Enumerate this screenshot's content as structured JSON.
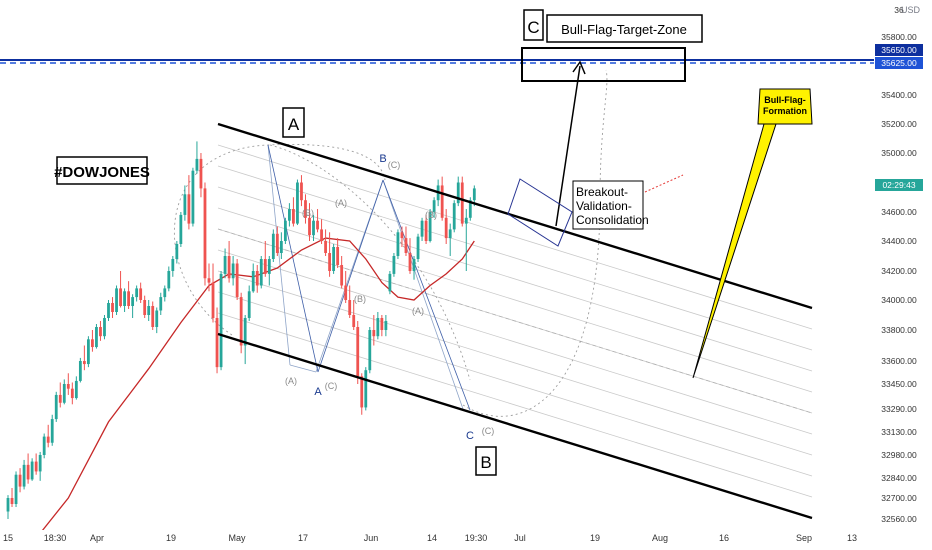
{
  "chart_data": {
    "type": "candlestick",
    "symbol": "#DOWJONES",
    "currency": "USD",
    "x_tick_labels": [
      "15",
      "18:30",
      "Apr",
      "19",
      "May",
      "17",
      "Jun",
      "14",
      "19:30",
      "Jul",
      "19",
      "Aug",
      "16",
      "Sep",
      "13"
    ],
    "y_tick_labels": [
      "35800.00",
      "35400.00",
      "35200.00",
      "35000.00",
      "34600.00",
      "34400.00",
      "34200.00",
      "34000.00",
      "33800.00",
      "33600.00",
      "33450.00",
      "33290.00",
      "33130.00",
      "32980.00",
      "32840.00",
      "32700.00",
      "32560.00"
    ],
    "price_badges": [
      {
        "label": "35650.00",
        "color": "#0d2f9e"
      },
      {
        "label": "35625.00",
        "color": "#1e53d6"
      },
      {
        "label": "02:29:43",
        "color": "#26a69a"
      }
    ],
    "horizontal_lines": [
      {
        "value": 35650,
        "style": "solid",
        "color": "#0d2f9e"
      },
      {
        "value": 35625,
        "style": "dashed",
        "color": "#1e53d6"
      }
    ],
    "candles": [
      [
        15,
        32610,
        32720,
        32560,
        32700
      ],
      [
        16,
        32700,
        32770,
        32640,
        32660
      ],
      [
        17,
        32660,
        32880,
        32640,
        32860
      ],
      [
        18,
        32860,
        32900,
        32740,
        32780
      ],
      [
        19,
        32780,
        32950,
        32760,
        32920
      ],
      [
        20,
        32920,
        32990,
        32800,
        32830
      ],
      [
        21,
        32830,
        32960,
        32820,
        32940
      ],
      [
        22,
        32940,
        32990,
        32860,
        32880
      ],
      [
        23,
        32880,
        33000,
        32820,
        32980
      ],
      [
        24,
        32980,
        33120,
        32960,
        33100
      ],
      [
        25,
        33100,
        33180,
        33030,
        33060
      ],
      [
        26,
        33060,
        33250,
        33040,
        33220
      ],
      [
        27,
        33220,
        33400,
        33200,
        33380
      ],
      [
        28,
        33380,
        33460,
        33300,
        33330
      ],
      [
        29,
        33330,
        33480,
        33320,
        33450
      ],
      [
        30,
        33450,
        33520,
        33380,
        33420
      ],
      [
        31,
        33420,
        33460,
        33320,
        33360
      ],
      [
        32,
        33360,
        33500,
        33350,
        33470
      ],
      [
        33,
        33470,
        33620,
        33460,
        33600
      ],
      [
        34,
        33600,
        33700,
        33540,
        33580
      ],
      [
        35,
        33580,
        33760,
        33560,
        33740
      ],
      [
        36,
        33740,
        33800,
        33660,
        33690
      ],
      [
        37,
        33690,
        33840,
        33680,
        33820
      ],
      [
        38,
        33820,
        33860,
        33730,
        33760
      ],
      [
        39,
        33760,
        33900,
        33740,
        33880
      ],
      [
        40,
        33880,
        34000,
        33860,
        33980
      ],
      [
        41,
        33980,
        34020,
        33880,
        33920
      ],
      [
        42,
        33920,
        34100,
        33900,
        34080
      ],
      [
        43,
        34080,
        34200,
        33950,
        33960
      ],
      [
        44,
        33960,
        34080,
        33920,
        34060
      ],
      [
        45,
        34060,
        34130,
        33940,
        33960
      ],
      [
        46,
        33960,
        34040,
        33880,
        34020
      ],
      [
        47,
        34020,
        34100,
        33990,
        34080
      ],
      [
        48,
        34080,
        34120,
        33980,
        34000
      ],
      [
        49,
        34000,
        34030,
        33880,
        33900
      ],
      [
        50,
        33900,
        34000,
        33860,
        33960
      ],
      [
        51,
        33960,
        33990,
        33800,
        33820
      ],
      [
        52,
        33820,
        33950,
        33780,
        33930
      ],
      [
        53,
        33930,
        34050,
        33900,
        34020
      ],
      [
        54,
        34020,
        34100,
        33990,
        34080
      ],
      [
        55,
        34080,
        34230,
        34060,
        34200
      ],
      [
        56,
        34200,
        34300,
        34160,
        34280
      ],
      [
        57,
        34280,
        34400,
        34250,
        34380
      ],
      [
        58,
        34380,
        34600,
        34360,
        34580
      ],
      [
        59,
        34580,
        34780,
        34540,
        34720
      ],
      [
        60,
        34720,
        34850,
        34480,
        34520
      ],
      [
        61,
        34520,
        34900,
        34500,
        34880
      ],
      [
        62,
        34880,
        35080,
        34860,
        34960
      ],
      [
        63,
        34960,
        35000,
        34700,
        34760
      ],
      [
        64,
        34760,
        34800,
        34100,
        34150
      ],
      [
        65,
        34150,
        34250,
        34060,
        34120
      ],
      [
        66,
        34120,
        34250,
        33850,
        33880
      ],
      [
        67,
        33880,
        33950,
        33520,
        33560
      ],
      [
        68,
        33560,
        34200,
        33540,
        34180
      ],
      [
        69,
        34180,
        34350,
        34150,
        34300
      ],
      [
        70,
        34300,
        34400,
        34120,
        34150
      ],
      [
        71,
        34150,
        34300,
        34100,
        34250
      ],
      [
        72,
        34250,
        34280,
        34000,
        34020
      ],
      [
        73,
        34020,
        34050,
        33650,
        33700
      ],
      [
        74,
        33700,
        33900,
        33580,
        33880
      ],
      [
        75,
        33880,
        34100,
        33860,
        34060
      ],
      [
        76,
        34060,
        34250,
        34050,
        34200
      ],
      [
        77,
        34200,
        34240,
        34050,
        34100
      ],
      [
        78,
        34100,
        34300,
        34080,
        34280
      ],
      [
        79,
        34280,
        34400,
        34160,
        34180
      ],
      [
        80,
        34180,
        34300,
        34100,
        34280
      ],
      [
        81,
        34280,
        34480,
        34260,
        34450
      ],
      [
        82,
        34450,
        34500,
        34300,
        34320
      ],
      [
        83,
        34320,
        34460,
        34280,
        34400
      ],
      [
        84,
        34400,
        34560,
        34380,
        34540
      ],
      [
        85,
        34540,
        34660,
        34500,
        34620
      ],
      [
        86,
        34620,
        34700,
        34500,
        34520
      ],
      [
        87,
        34520,
        34820,
        34510,
        34800
      ],
      [
        88,
        34800,
        34850,
        34640,
        34680
      ],
      [
        89,
        34680,
        34720,
        34520,
        34560
      ],
      [
        90,
        34560,
        34660,
        34400,
        34440
      ],
      [
        91,
        34440,
        34580,
        34400,
        34540
      ],
      [
        92,
        34540,
        34620,
        34460,
        34480
      ],
      [
        93,
        34480,
        34550,
        34380,
        34400
      ],
      [
        94,
        34400,
        34480,
        34300,
        34320
      ],
      [
        95,
        34320,
        34460,
        34160,
        34200
      ],
      [
        96,
        34200,
        34380,
        34180,
        34360
      ],
      [
        97,
        34360,
        34420,
        34220,
        34240
      ],
      [
        98,
        34240,
        34300,
        34080,
        34100
      ],
      [
        99,
        34100,
        34200,
        33980,
        34000
      ],
      [
        100,
        34000,
        34100,
        33880,
        33900
      ],
      [
        101,
        33900,
        34000,
        33800,
        33820
      ],
      [
        102,
        33820,
        33860,
        33450,
        33500
      ],
      [
        103,
        33500,
        33520,
        33250,
        33300
      ],
      [
        104,
        33300,
        33560,
        33280,
        33540
      ],
      [
        105,
        33540,
        33820,
        33520,
        33800
      ],
      [
        106,
        33800,
        33900,
        33700,
        33760
      ],
      [
        107,
        33760,
        33920,
        33740,
        33880
      ],
      [
        108,
        33880,
        33900,
        33760,
        33800
      ],
      [
        109,
        33800,
        33900,
        33760,
        33860
      ],
      [
        110,
        34060,
        34200,
        34040,
        34180
      ],
      [
        111,
        34180,
        34320,
        34160,
        34300
      ],
      [
        112,
        34300,
        34480,
        34280,
        34460
      ],
      [
        113,
        34460,
        34500,
        34360,
        34420
      ],
      [
        114,
        34420,
        34500,
        34300,
        34320
      ],
      [
        115,
        34320,
        34420,
        34180,
        34200
      ],
      [
        116,
        34200,
        34300,
        34140,
        34280
      ],
      [
        117,
        34280,
        34450,
        34260,
        34430
      ],
      [
        118,
        34430,
        34560,
        34400,
        34540
      ],
      [
        119,
        34540,
        34580,
        34380,
        34400
      ],
      [
        120,
        34400,
        34620,
        34390,
        34600
      ],
      [
        121,
        34600,
        34700,
        34560,
        34680
      ],
      [
        122,
        34680,
        34820,
        34640,
        34780
      ],
      [
        123,
        34780,
        34840,
        34540,
        34560
      ],
      [
        124,
        34560,
        34620,
        34380,
        34420
      ],
      [
        125,
        34420,
        34520,
        34300,
        34480
      ],
      [
        126,
        34480,
        34680,
        34460,
        34660
      ],
      [
        127,
        34660,
        34840,
        34640,
        34800
      ],
      [
        128,
        34800,
        34840,
        34500,
        34520
      ],
      [
        129,
        34520,
        34620,
        34200,
        34560
      ],
      [
        130,
        34560,
        34700,
        34540,
        34680
      ],
      [
        131,
        34680,
        34780,
        34640,
        34760
      ]
    ],
    "moving_average": {
      "color": "#c62828",
      "points": [
        [
          15,
          31800
        ],
        [
          22,
          32200
        ],
        [
          30,
          32700
        ],
        [
          40,
          33200
        ],
        [
          50,
          33550
        ],
        [
          58,
          33850
        ],
        [
          65,
          34100
        ],
        [
          70,
          34180
        ],
        [
          76,
          34160
        ],
        [
          82,
          34220
        ],
        [
          88,
          34340
        ],
        [
          94,
          34420
        ],
        [
          100,
          34400
        ],
        [
          104,
          34280
        ],
        [
          108,
          34120
        ],
        [
          112,
          34020
        ],
        [
          116,
          34000
        ],
        [
          120,
          34100
        ],
        [
          124,
          34180
        ],
        [
          128,
          34280
        ],
        [
          131,
          34400
        ]
      ]
    },
    "annotations": {
      "title": "#DOWJONES",
      "target_label": "Bull-Flag-Target-Zone",
      "c_box_label": "C",
      "flag_note": "Bull-Flag-\nFormation",
      "breakout_note": "Breakout-\nValidation-\nConsolidation",
      "wave_labels": [
        "A",
        "B",
        "C",
        "A",
        "B",
        "(A)",
        "(B)",
        "(C)",
        "(A)",
        "(B)",
        "(C)",
        "(A)",
        "(B)",
        "(C)",
        "(A)",
        "(B)",
        "(C)"
      ]
    }
  }
}
